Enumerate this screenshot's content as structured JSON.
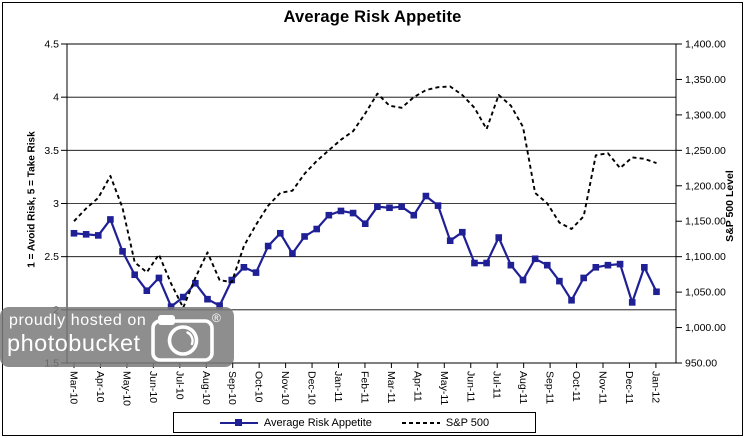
{
  "watermark": {
    "line1": "proudly hosted on",
    "line2": "photobucket",
    "reg": "®"
  },
  "chart_data": {
    "type": "line",
    "title": "Average Risk Appetite",
    "ylabel_left": "1 = Avoid Risk, 5 = Take Risk",
    "ylabel_right": "S&P 500 Level",
    "left_axis_range": [
      1.5,
      4.5
    ],
    "right_axis_range": [
      950,
      1400
    ],
    "left_axis_ticks": [
      "4.5",
      "4",
      "3.5",
      "3",
      "2.5",
      "2",
      "1.5"
    ],
    "right_axis_ticks": [
      "1,400.00",
      "1,350.00",
      "1,300.00",
      "1,250.00",
      "1,200.00",
      "1,150.00",
      "1,100.00",
      "1,050.00",
      "1,000.00",
      "950.00"
    ],
    "x_tick_labels": [
      "Mar-10",
      "Apr-10",
      "May-10",
      "Jun-10",
      "Jul-10",
      "Aug-10",
      "Sep-10",
      "Oct-10",
      "Nov-10",
      "Dec-10",
      "Jan-11",
      "Feb-11",
      "Mar-11",
      "Apr-11",
      "May-11",
      "Jun-11",
      "Jul-11",
      "Aug-11",
      "Sep-11",
      "Oct-11",
      "Nov-11",
      "Dec-11",
      "Jan-12"
    ],
    "grid": "horizontal",
    "legend_position": "bottom",
    "series": [
      {
        "name": "Average Risk Appetite",
        "axis": "left",
        "color": "#1f1f96",
        "line": "solid",
        "marker": "square",
        "values": [
          2.72,
          2.71,
          2.7,
          2.85,
          2.55,
          2.33,
          2.18,
          2.3,
          2.03,
          2.12,
          2.25,
          2.1,
          2.04,
          2.28,
          2.4,
          2.35,
          2.6,
          2.72,
          2.53,
          2.69,
          2.76,
          2.89,
          2.93,
          2.91,
          2.81,
          2.97,
          2.96,
          2.97,
          2.89,
          3.07,
          2.98,
          2.65,
          2.73,
          2.44,
          2.44,
          2.68,
          2.42,
          2.28,
          2.48,
          2.42,
          2.27,
          2.09,
          2.3,
          2.4,
          2.42,
          2.43,
          2.07,
          2.4,
          2.17
        ]
      },
      {
        "name": "S&P 500",
        "axis": "right",
        "color": "#000000",
        "line": "dashed",
        "marker": "none",
        "values": [
          1150,
          1168,
          1183,
          1214,
          1169,
          1092,
          1078,
          1103,
          1062,
          1028,
          1070,
          1106,
          1067,
          1064,
          1115,
          1145,
          1172,
          1190,
          1193,
          1217,
          1235,
          1250,
          1265,
          1277,
          1302,
          1330,
          1313,
          1310,
          1325,
          1335,
          1339,
          1340,
          1328,
          1310,
          1280,
          1328,
          1313,
          1283,
          1190,
          1175,
          1148,
          1139,
          1157,
          1243,
          1246,
          1225,
          1240,
          1238,
          1232
        ]
      }
    ]
  }
}
